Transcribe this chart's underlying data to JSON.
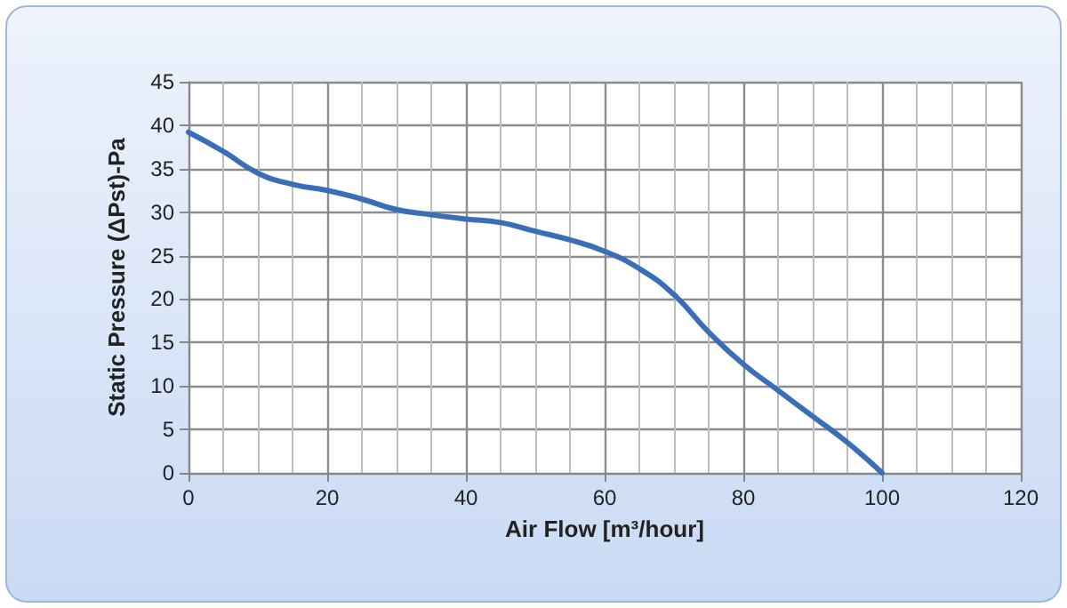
{
  "chart_data": {
    "type": "line",
    "xlabel": "Air Flow [m³/hour]",
    "ylabel": "Static Pressure (ΔPst)-Pa",
    "x": [
      0,
      5,
      10,
      15,
      20,
      25,
      30,
      35,
      40,
      45,
      50,
      55,
      60,
      65,
      70,
      75,
      80,
      85,
      90,
      95,
      100
    ],
    "series": [
      {
        "color": "#3a6fb7",
        "values": [
          39.2,
          37,
          34.5,
          33.2,
          32.5,
          31.5,
          30.3,
          29.7,
          29.2,
          28.8,
          27.8,
          26.8,
          25.5,
          23.5,
          20.5,
          16.2,
          12.5,
          9.5,
          6.5,
          3.5,
          0
        ]
      }
    ],
    "xlim": [
      0,
      120
    ],
    "xticks": [
      0,
      20,
      40,
      60,
      80,
      100,
      120
    ],
    "ylim": [
      0,
      45
    ],
    "yticks": [
      0,
      5,
      10,
      15,
      20,
      25,
      30,
      35,
      40,
      45
    ],
    "grid": true,
    "marker": "none",
    "line_style": "solid"
  }
}
